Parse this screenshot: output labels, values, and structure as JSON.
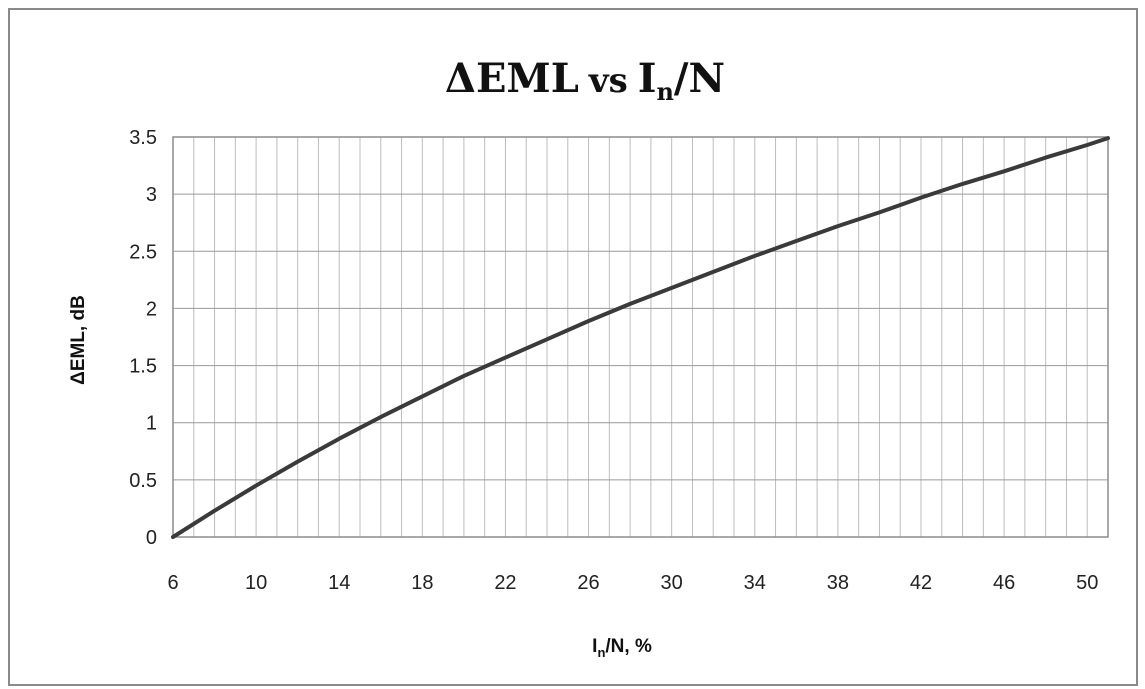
{
  "chart_data": {
    "type": "line",
    "title": "ΔEML vs In/N",
    "title_parts": {
      "main": "ΔEML",
      "vs": "vs",
      "var": "I",
      "sub": "n",
      "rest": "/N"
    },
    "xlabel": "In/N, %",
    "xlabel_parts": {
      "var": "I",
      "sub": "n",
      "rest": "/N, %"
    },
    "ylabel": "ΔEML, dB",
    "xlim": [
      6,
      51
    ],
    "ylim": [
      0,
      3.5
    ],
    "xticks": [
      6,
      10,
      14,
      18,
      22,
      26,
      30,
      34,
      38,
      42,
      46,
      50
    ],
    "xtick_labels": [
      "6",
      "10",
      "14",
      "18",
      "22",
      "26",
      "30",
      "34",
      "38",
      "42",
      "46",
      "50"
    ],
    "yticks": [
      0,
      0.5,
      1,
      1.5,
      2,
      2.5,
      3,
      3.5
    ],
    "ytick_labels": [
      "0",
      "0.5",
      "1",
      "1.5",
      "2",
      "2.5",
      "3",
      "3.5"
    ],
    "grid": true,
    "x_minor_step": 1,
    "series": [
      {
        "color": "#3a3a3a",
        "x": [
          6,
          8,
          10,
          12,
          14,
          16,
          18,
          20,
          22,
          24,
          26,
          28,
          30,
          32,
          34,
          36,
          38,
          40,
          42,
          44,
          46,
          48,
          50,
          51
        ],
        "y": [
          0,
          0.23,
          0.45,
          0.66,
          0.86,
          1.05,
          1.23,
          1.41,
          1.57,
          1.73,
          1.89,
          2.04,
          2.18,
          2.32,
          2.46,
          2.59,
          2.72,
          2.84,
          2.97,
          3.09,
          3.2,
          3.32,
          3.43,
          3.49
        ]
      }
    ]
  }
}
